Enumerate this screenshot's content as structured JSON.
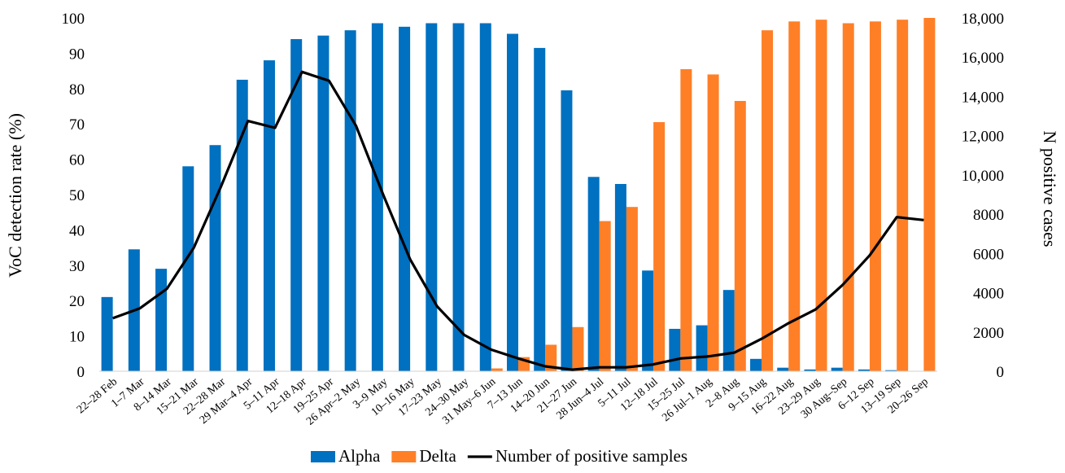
{
  "chart_data": {
    "type": "bar",
    "title": "",
    "categories": [
      "22–28 Feb",
      "1–7 Mar",
      "8–14 Mar",
      "15–21 Mar",
      "22–28 Mar",
      "29 Mar–4 Apr",
      "5–11 Apr",
      "12–18 Apr",
      "19–25 Apr",
      "26 Apr–2 May",
      "3–9 May",
      "10–16 May",
      "17–23 May",
      "24–30 May",
      "31 May–6 Jun",
      "7–13 Jun",
      "14–20 Jun",
      "21–27 Jun",
      "28 Jun–4 Jul",
      "5–11 Jul",
      "12–18 Jul",
      "15–25 Jul",
      "26 Jul–1 Aug",
      "2–8 Aug",
      "9–15 Aug",
      "16–22 Aug",
      "23–29 Aug",
      "30 Aug–Sep",
      "6–12 Sep",
      "13–19 Sep",
      "20–26 Sep"
    ],
    "series": [
      {
        "name": "Alpha",
        "type": "bar",
        "axis": "left",
        "color": "#0070C0",
        "values": [
          21,
          34.5,
          29,
          58,
          64,
          82.5,
          88,
          94,
          95,
          96.5,
          98.5,
          97.5,
          98.5,
          98.5,
          98.5,
          95.5,
          91.5,
          79.5,
          55,
          53,
          28.5,
          12,
          13,
          23,
          3.5,
          1,
          0.5,
          1,
          0.5,
          0.3,
          0
        ]
      },
      {
        "name": "Delta",
        "type": "bar",
        "axis": "left",
        "color": "#FF7F27",
        "values": [
          0,
          0,
          0,
          0,
          0,
          0,
          0,
          0,
          0,
          0,
          0,
          0,
          0,
          0,
          0.8,
          4,
          7.5,
          12.5,
          42.5,
          46.5,
          70.5,
          85.5,
          84,
          76.5,
          96.5,
          99,
          99.5,
          98.5,
          99,
          99.5,
          100
        ]
      },
      {
        "name": "Number of positive samples",
        "type": "line",
        "axis": "right",
        "color": "#000000",
        "values": [
          2700,
          3200,
          4200,
          6300,
          9400,
          12750,
          12400,
          15250,
          14800,
          12500,
          9000,
          5700,
          3300,
          1850,
          1100,
          650,
          250,
          80,
          200,
          200,
          350,
          650,
          750,
          950,
          1650,
          2450,
          3150,
          4400,
          5900,
          7850,
          7700
        ]
      }
    ],
    "y_left": {
      "label": "VoC detection rate (%)",
      "min": 0,
      "max": 100,
      "ticks": [
        0,
        10,
        20,
        30,
        40,
        50,
        60,
        70,
        80,
        90,
        100
      ],
      "tick_labels": [
        "0",
        "10",
        "20",
        "30",
        "40",
        "50",
        "60",
        "70",
        "80",
        "90",
        "100"
      ]
    },
    "y_right": {
      "label": "N positive cases",
      "min": 0,
      "max": 18000,
      "ticks": [
        0,
        2000,
        4000,
        6000,
        8000,
        10000,
        12000,
        14000,
        16000,
        18000
      ],
      "tick_labels": [
        "0",
        "2000",
        "4000",
        "6000",
        "8000",
        "10,000",
        "12,000",
        "14,000",
        "16,000",
        "18,000"
      ]
    },
    "legend": {
      "position": "bottom",
      "entries": [
        "Alpha",
        "Delta",
        "Number of positive samples"
      ]
    },
    "grid": false
  }
}
